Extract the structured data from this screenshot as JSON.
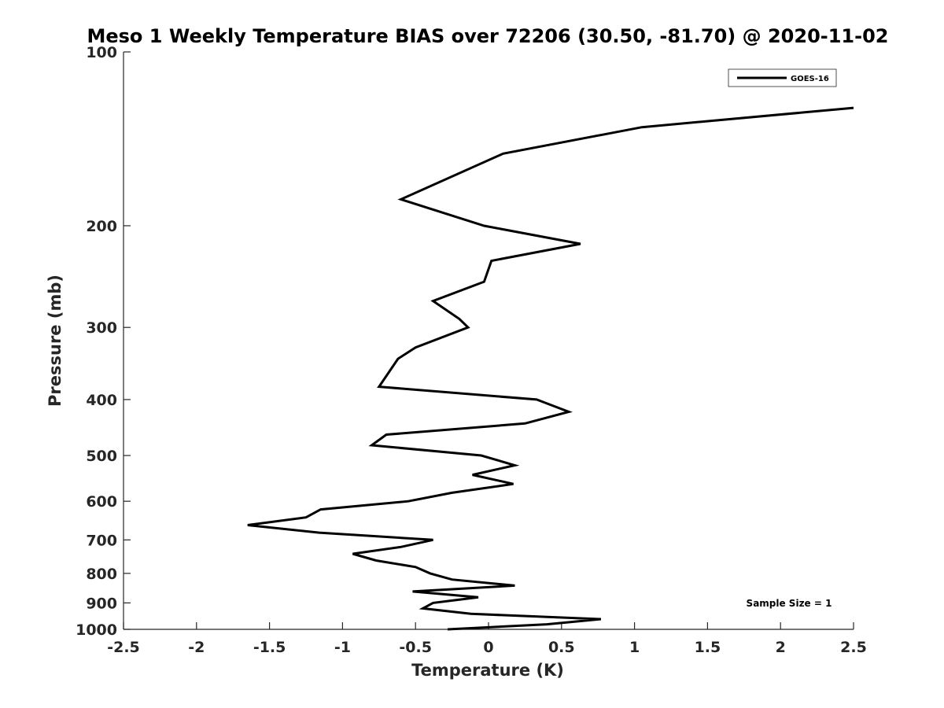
{
  "chart_data": {
    "type": "line",
    "title": "Meso 1 Weekly Temperature BIAS over 72206 (30.50, -81.70) @ 2020-11-02",
    "xlabel": "Temperature (K)",
    "ylabel": "Pressure (mb)",
    "xlim": [
      -2.5,
      2.5
    ],
    "ylim": [
      1000,
      100
    ],
    "y_scale": "log",
    "y_reversed": true,
    "grid": false,
    "legend_position": "top-right",
    "x_ticks": [
      -2.5,
      -2,
      -1.5,
      -1,
      -0.5,
      0,
      0.5,
      1,
      1.5,
      2,
      2.5
    ],
    "x_tick_labels": [
      "-2.5",
      "-2",
      "-1.5",
      "-1",
      "-0.5",
      "0",
      "0.5",
      "1",
      "1.5",
      "2",
      "2.5"
    ],
    "y_ticks": [
      100,
      200,
      300,
      400,
      500,
      600,
      700,
      800,
      900,
      1000
    ],
    "y_tick_labels": [
      "100",
      "200",
      "300",
      "400",
      "500",
      "600",
      "700",
      "800",
      "900",
      "1000"
    ],
    "annotation": "Sample Size = 1",
    "series": [
      {
        "name": "GOES-16",
        "color": "#000000",
        "points": [
          {
            "x": 2.5,
            "y": 125
          },
          {
            "x": 1.05,
            "y": 135
          },
          {
            "x": 0.1,
            "y": 150
          },
          {
            "x": -0.6,
            "y": 180
          },
          {
            "x": -0.03,
            "y": 200
          },
          {
            "x": 0.63,
            "y": 215
          },
          {
            "x": 0.02,
            "y": 230
          },
          {
            "x": -0.03,
            "y": 250
          },
          {
            "x": -0.38,
            "y": 270
          },
          {
            "x": -0.2,
            "y": 290
          },
          {
            "x": -0.14,
            "y": 300
          },
          {
            "x": -0.5,
            "y": 325
          },
          {
            "x": -0.62,
            "y": 340
          },
          {
            "x": -0.75,
            "y": 380
          },
          {
            "x": 0.33,
            "y": 400
          },
          {
            "x": 0.55,
            "y": 420
          },
          {
            "x": 0.25,
            "y": 440
          },
          {
            "x": -0.7,
            "y": 460
          },
          {
            "x": -0.8,
            "y": 480
          },
          {
            "x": -0.05,
            "y": 500
          },
          {
            "x": 0.18,
            "y": 520
          },
          {
            "x": -0.11,
            "y": 540
          },
          {
            "x": 0.17,
            "y": 560
          },
          {
            "x": -0.25,
            "y": 580
          },
          {
            "x": -0.55,
            "y": 600
          },
          {
            "x": -1.15,
            "y": 620
          },
          {
            "x": -1.25,
            "y": 640
          },
          {
            "x": -1.65,
            "y": 660
          },
          {
            "x": -1.16,
            "y": 680
          },
          {
            "x": -0.38,
            "y": 700
          },
          {
            "x": -0.6,
            "y": 720
          },
          {
            "x": -0.93,
            "y": 740
          },
          {
            "x": -0.77,
            "y": 760
          },
          {
            "x": -0.5,
            "y": 780
          },
          {
            "x": -0.4,
            "y": 800
          },
          {
            "x": -0.25,
            "y": 820
          },
          {
            "x": 0.18,
            "y": 840
          },
          {
            "x": -0.52,
            "y": 860
          },
          {
            "x": -0.07,
            "y": 880
          },
          {
            "x": -0.38,
            "y": 900
          },
          {
            "x": -0.45,
            "y": 920
          },
          {
            "x": -0.12,
            "y": 940
          },
          {
            "x": 0.77,
            "y": 960
          },
          {
            "x": 0.4,
            "y": 980
          },
          {
            "x": -0.28,
            "y": 1000
          }
        ]
      }
    ]
  }
}
